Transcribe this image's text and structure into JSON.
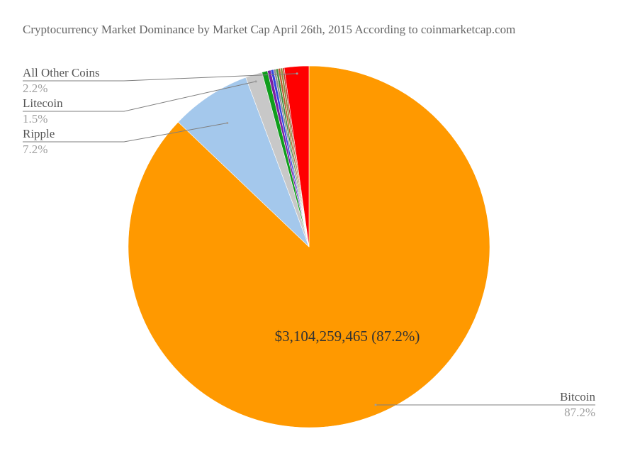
{
  "chart_data": {
    "type": "pie",
    "title": "Cryptocurrency Market Dominance by Market Cap April 26th, 2015 According to coinmarketcap.com",
    "slices": [
      {
        "name": "Bitcoin",
        "value": 87.2,
        "pct_label": "87.2%",
        "color": "#ff9900"
      },
      {
        "name": "Ripple",
        "value": 7.2,
        "pct_label": "7.2%",
        "color": "#a4c8ec"
      },
      {
        "name": "Litecoin",
        "value": 1.5,
        "pct_label": "1.5%",
        "color": "#c8c8c8"
      },
      {
        "name": "",
        "value": 0.5,
        "color": "#0f9d1c"
      },
      {
        "name": "",
        "value": 0.3,
        "color": "#7a1fa2"
      },
      {
        "name": "",
        "value": 0.25,
        "color": "#3344dd"
      },
      {
        "name": "",
        "value": 0.2,
        "color": "#8e8e8e"
      },
      {
        "name": "",
        "value": 0.2,
        "color": "#3d8f3d"
      },
      {
        "name": "",
        "value": 0.2,
        "color": "#b85c2e"
      },
      {
        "name": "",
        "value": 0.2,
        "color": "#8c8c3c"
      },
      {
        "name": "",
        "value": 0.15,
        "color": "#c0392b"
      },
      {
        "name": "All Other Coins",
        "value": 2.2,
        "pct_label": "2.2%",
        "color": "#ff0000"
      }
    ],
    "center_label": "$3,104,259,465 (87.2%)"
  }
}
